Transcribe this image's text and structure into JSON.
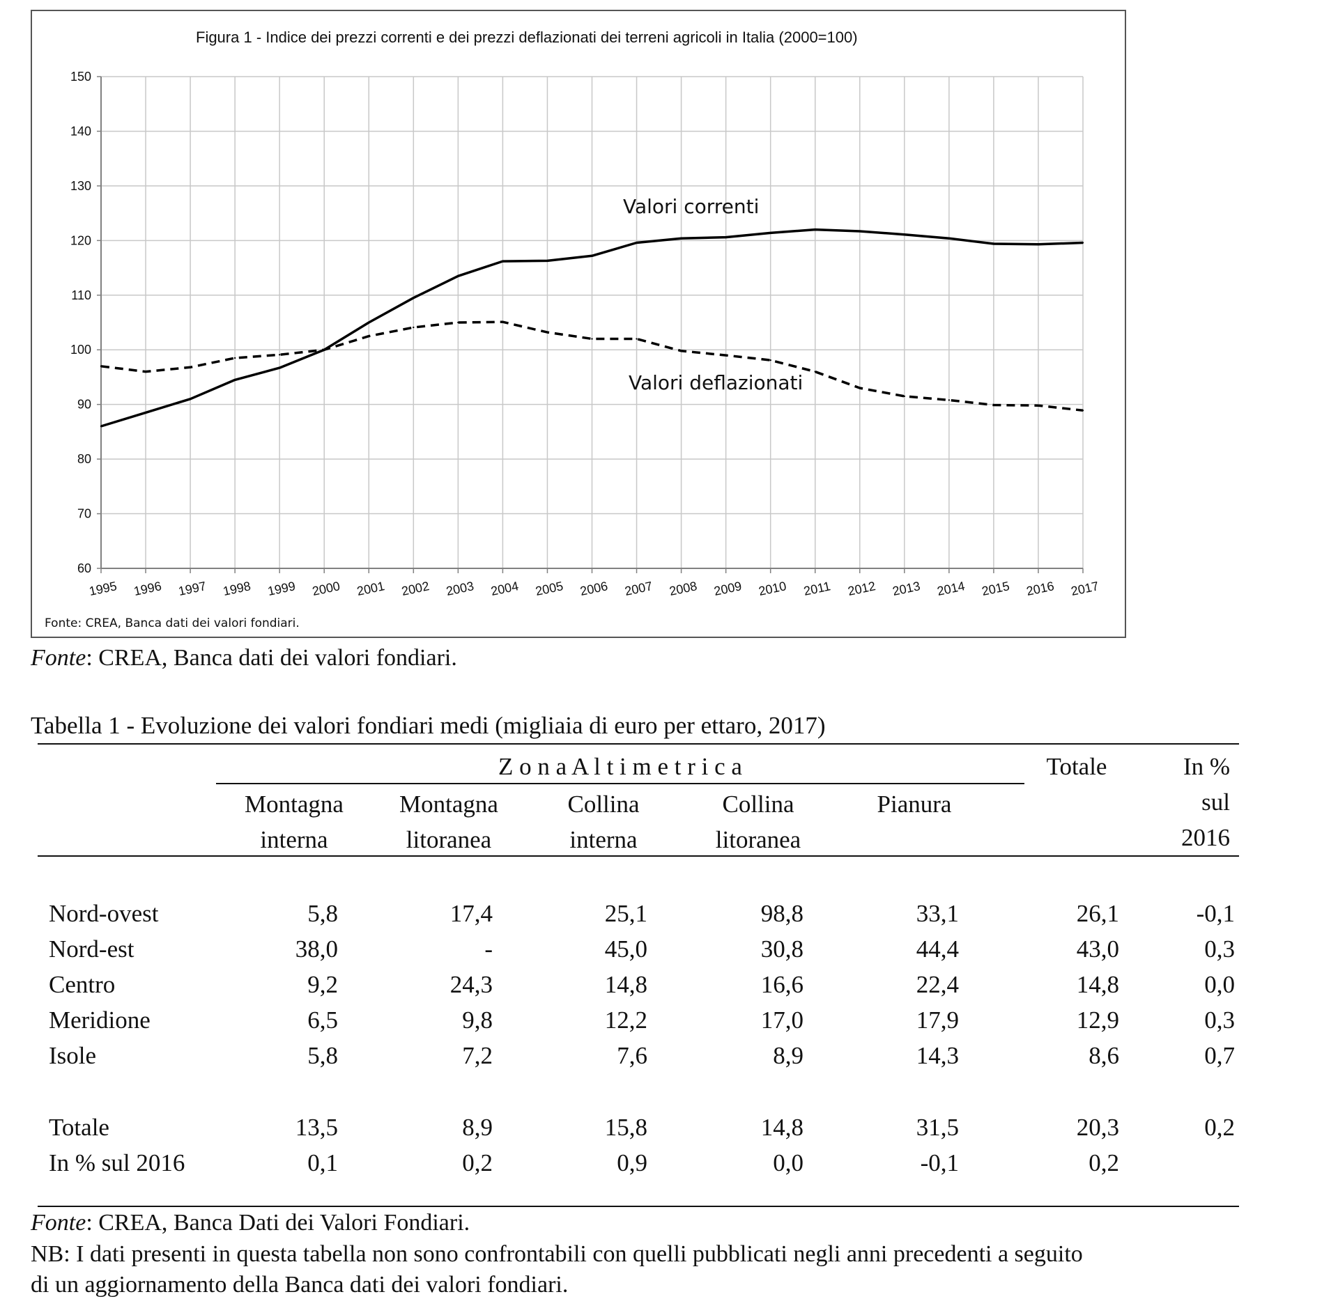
{
  "figure": {
    "title": "Figura 1 -  Indice dei prezzi correnti e dei prezzi deflazionati dei terreni agricoli in Italia (2000=100)",
    "inner_source": "Fonte: CREA, Banca dati dei valori fondiari."
  },
  "chart_data": {
    "type": "line",
    "title": "Figura 1 -  Indice dei prezzi correnti e dei prezzi deflazionati dei terreni agricoli in Italia (2000=100)",
    "x": [
      "1995",
      "1996",
      "1997",
      "1998",
      "1999",
      "2000",
      "2001",
      "2002",
      "2003",
      "2004",
      "2005",
      "2006",
      "2007",
      "2008",
      "2009",
      "2010",
      "2011",
      "2012",
      "2013",
      "2014",
      "2015",
      "2016",
      "2017"
    ],
    "y_ticks": [
      "60",
      "70",
      "80",
      "90",
      "100",
      "110",
      "120",
      "130",
      "140",
      "150"
    ],
    "ylim": [
      60,
      150
    ],
    "grid": true,
    "series": [
      {
        "name": "Valori correnti",
        "style": "solid",
        "values": [
          86.0,
          88.5,
          91.0,
          94.5,
          96.7,
          100.0,
          105.0,
          109.5,
          113.5,
          116.2,
          116.3,
          117.2,
          119.6,
          120.4,
          120.6,
          121.4,
          122.0,
          121.7,
          121.1,
          120.4,
          119.4,
          119.3,
          119.6
        ]
      },
      {
        "name": "Valori deflazionati",
        "style": "dashed",
        "values": [
          97.0,
          96.0,
          96.8,
          98.5,
          99.1,
          100.0,
          102.5,
          104.1,
          105.0,
          105.1,
          103.2,
          102.0,
          102.0,
          99.8,
          99.0,
          98.1,
          96.0,
          93.0,
          91.5,
          90.8,
          89.9,
          89.8,
          88.9
        ]
      }
    ],
    "colors": {
      "line": "#000000",
      "grid": "#c8c8c8",
      "axis": "#808080"
    }
  },
  "figure_source": {
    "italic": "Fonte",
    "rest": ": CREA, Banca dati dei valori fondiari."
  },
  "table": {
    "title": "Tabella 1 - Evoluzione dei valori fondiari medi (migliaia di euro per ettaro, 2017)",
    "group_header": "Z o n a   A l t i m e t r i c a",
    "totale_header": "Totale",
    "pct_header": [
      "In %",
      "sul",
      "2016"
    ],
    "columns": [
      [
        "Montagna",
        "interna"
      ],
      [
        "Montagna",
        "litoranea"
      ],
      [
        "Collina",
        "interna"
      ],
      [
        "Collina",
        "litoranea"
      ],
      [
        "Pianura",
        ""
      ]
    ],
    "rows": [
      {
        "label": "Nord-ovest",
        "values": [
          "5,8",
          "17,4",
          "25,1",
          "98,8",
          "33,1",
          "26,1",
          "-0,1"
        ]
      },
      {
        "label": "Nord-est",
        "values": [
          "38,0",
          "-",
          "45,0",
          "30,8",
          "44,4",
          "43,0",
          "0,3"
        ]
      },
      {
        "label": "Centro",
        "values": [
          "9,2",
          "24,3",
          "14,8",
          "16,6",
          "22,4",
          "14,8",
          "0,0"
        ]
      },
      {
        "label": "Meridione",
        "values": [
          "6,5",
          "9,8",
          "12,2",
          "17,0",
          "17,9",
          "12,9",
          "0,3"
        ]
      },
      {
        "label": "Isole",
        "values": [
          "5,8",
          "7,2",
          "7,6",
          "8,9",
          "14,3",
          "8,6",
          "0,7"
        ]
      }
    ],
    "totals": [
      {
        "label": "Totale",
        "values": [
          "13,5",
          "8,9",
          "15,8",
          "14,8",
          "31,5",
          "20,3",
          "0,2"
        ]
      },
      {
        "label": "In % sul 2016",
        "values": [
          "0,1",
          "0,2",
          "0,9",
          "0,0",
          "-0,1",
          "0,2",
          ""
        ]
      }
    ],
    "source": {
      "italic": "Fonte",
      "rest": ": CREA, Banca Dati dei Valori Fondiari."
    },
    "note_line1": "NB: I dati presenti in questa tabella non sono confrontabili con quelli pubblicati negli anni precedenti a seguito",
    "note_line2": "di un aggiornamento della Banca dati dei valori fondiari."
  }
}
